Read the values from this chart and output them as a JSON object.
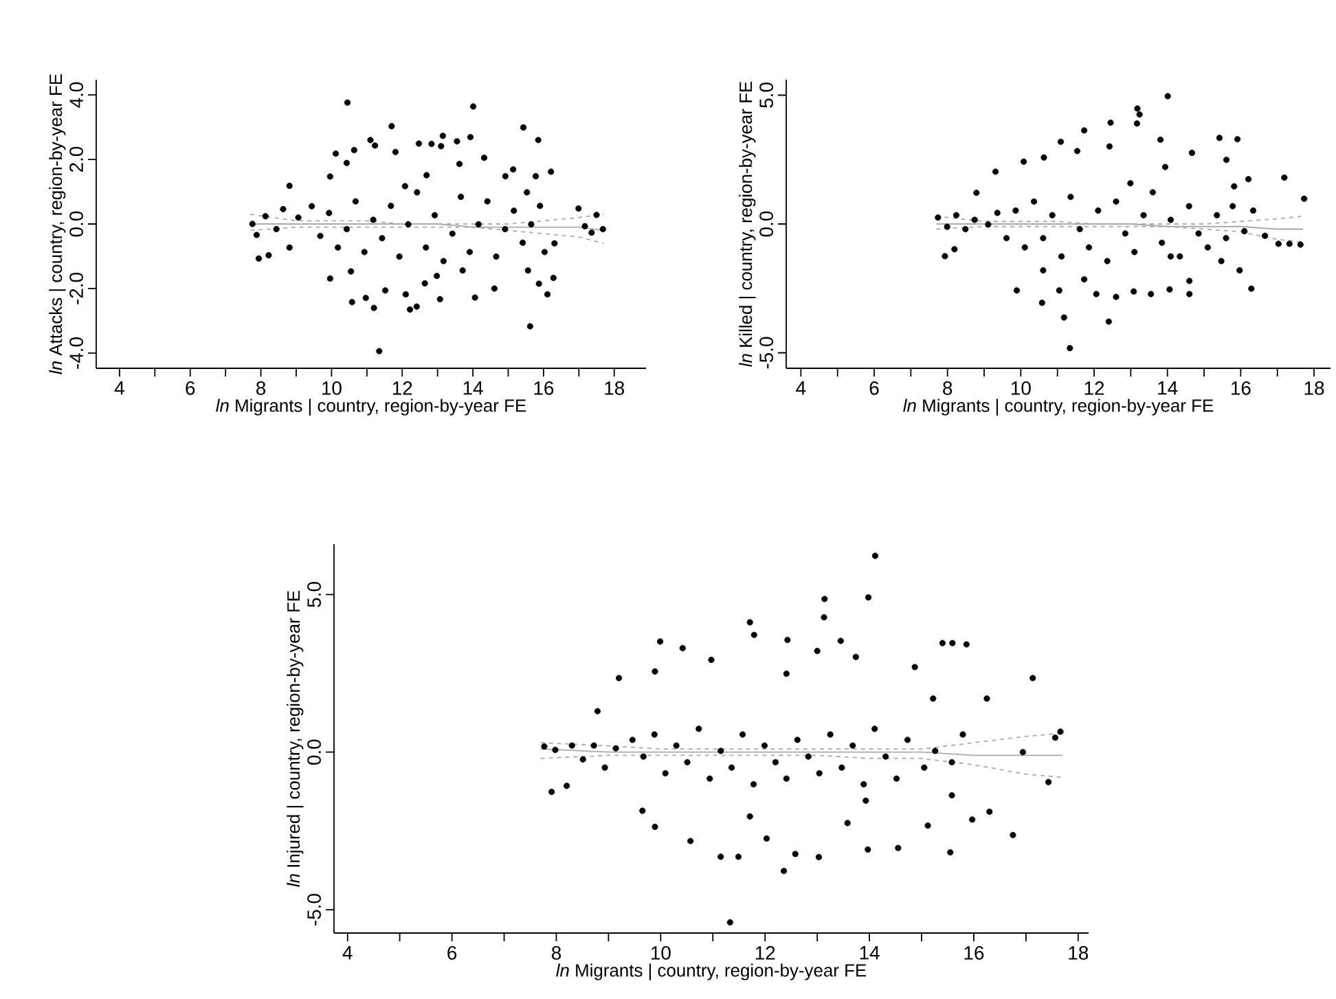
{
  "chart_data": [
    {
      "type": "scatter",
      "xlabel": "*ln* Migrants | country, region-by-year FE",
      "ylabel": "*ln* Attacks | country, region-by-year FE",
      "xlim": [
        3.34,
        18.9
      ],
      "ylim": [
        -4.47,
        4.47
      ],
      "xticks": [
        4,
        {
          "value": 5,
          "label": null
        },
        6,
        {
          "value": 7,
          "label": null
        },
        8,
        {
          "value": 9,
          "label": null
        },
        10,
        {
          "value": 11,
          "label": null
        },
        12,
        {
          "value": 13,
          "label": null
        },
        14,
        {
          "value": 15,
          "label": null
        },
        16,
        {
          "value": 17,
          "label": null
        },
        18
      ],
      "yticks": [
        {
          "value": -4,
          "label": "-4.0"
        },
        {
          "value": -2,
          "label": "-2.0"
        },
        {
          "value": 0,
          "label": "0.0"
        },
        {
          "value": 2,
          "label": "2.0"
        },
        {
          "value": 4,
          "label": "4.0"
        }
      ],
      "series": [
        {
          "color": "#000000",
          "marker": "circle",
          "x": [
            10.45,
            14.01,
            11.7,
            15.43,
            15.85,
            11.1,
            13.93,
            13.15,
            10.12,
            10.64,
            11.23,
            11.81,
            12.47,
            12.83,
            13.55,
            14.32,
            10.43,
            15.14,
            16.21,
            15.78,
            9.96,
            12.69,
            8.81,
            12.08,
            13.62,
            14.92,
            13.1,
            11.35,
            15.62,
            10.58,
            10.97,
            11.2,
            12.22,
            12.41,
            12.1,
            13.07,
            14.06,
            16.11,
            16.28,
            9.96,
            11.52,
            12.98,
            14.61,
            15.87,
            15.56,
            10.55,
            12.64,
            13.71,
            7.94,
            8.22,
            8.81,
            16.99,
            17.17,
            17.5,
            17.36,
            17.68,
            16.31,
            7.76,
            7.88,
            8.13,
            8.44,
            8.63,
            9.06,
            9.44,
            9.68,
            9.93,
            10.18,
            10.43,
            10.68,
            10.93,
            11.18,
            11.43,
            11.68,
            11.92,
            12.17,
            12.42,
            12.67,
            12.92,
            13.17,
            13.42,
            13.66,
            13.91,
            14.16,
            14.41,
            14.66,
            14.91,
            15.16,
            15.41,
            15.65,
            15.9,
            16.03,
            15.53
          ],
          "values": [
            3.76,
            3.64,
            3.03,
            2.99,
            2.6,
            2.6,
            2.69,
            2.73,
            2.18,
            2.29,
            2.43,
            2.23,
            2.49,
            2.48,
            2.56,
            2.05,
            1.89,
            1.69,
            1.62,
            1.48,
            1.47,
            1.51,
            1.18,
            1.17,
            1.86,
            1.48,
            2.41,
            -3.94,
            -3.17,
            -2.42,
            -2.29,
            -2.6,
            -2.65,
            -2.56,
            -2.18,
            -2.33,
            -2.28,
            -2.18,
            -1.67,
            -1.69,
            -2.06,
            -1.61,
            -2.0,
            -1.85,
            -1.44,
            -1.47,
            -1.84,
            -1.44,
            -1.07,
            -0.97,
            -0.73,
            0.48,
            -0.07,
            0.28,
            -0.27,
            -0.16,
            -0.6,
            0.0,
            -0.34,
            0.24,
            -0.16,
            0.46,
            0.2,
            0.55,
            -0.37,
            0.34,
            -0.73,
            -0.16,
            0.7,
            -0.87,
            0.13,
            -0.44,
            0.56,
            -1.01,
            -0.01,
            0.98,
            -0.73,
            0.27,
            -1.15,
            -0.3,
            0.84,
            -0.87,
            -0.01,
            0.7,
            -1.01,
            -0.16,
            0.41,
            -0.58,
            -0.01,
            0.56,
            -0.87,
            0.98
          ]
        },
        {
          "type": "line",
          "color": "#aaaaaa",
          "marker": "none",
          "line_style": "solid",
          "x": [
            7.7,
            9,
            10,
            11,
            12,
            13,
            14,
            15,
            16,
            17,
            17.7
          ],
          "values": [
            0,
            0,
            0,
            0,
            0,
            0,
            -0.1,
            -0.1,
            -0.1,
            -0.1,
            -0.2
          ]
        },
        {
          "type": "line",
          "color": "#aaaaaa",
          "marker": "none",
          "line_style": "dashed",
          "x": [
            7.7,
            9,
            10,
            11,
            12,
            13,
            14,
            15,
            16,
            17,
            17.7
          ],
          "values": [
            -0.2,
            -0.1,
            -0.1,
            -0.1,
            -0.1,
            -0.1,
            -0.1,
            -0.2,
            -0.3,
            -0.4,
            -0.6
          ]
        },
        {
          "type": "line",
          "color": "#aaaaaa",
          "marker": "none",
          "line_style": "dashed",
          "x": [
            7.7,
            9,
            10,
            11,
            12,
            13,
            14,
            15,
            16,
            17,
            17.7
          ],
          "values": [
            0.3,
            0.1,
            0.1,
            0.1,
            0,
            0,
            0,
            0,
            0.1,
            0.2,
            0.3
          ]
        }
      ]
    },
    {
      "type": "scatter",
      "xlabel": "*ln* Migrants | country, region-by-year FE",
      "ylabel": "*ln* Killed | country, region-by-year FE",
      "xlim": [
        3.6,
        18.45
      ],
      "ylim": [
        -5.6,
        5.6
      ],
      "xticks": [
        4,
        {
          "value": 5,
          "label": null
        },
        6,
        {
          "value": 7,
          "label": null
        },
        8,
        {
          "value": 9,
          "label": null
        },
        10,
        {
          "value": 11,
          "label": null
        },
        12,
        {
          "value": 13,
          "label": null
        },
        14,
        {
          "value": 15,
          "label": null
        },
        16,
        {
          "value": 17,
          "label": null
        },
        18
      ],
      "yticks": [
        {
          "value": -5,
          "label": "-5.0"
        },
        {
          "value": 0,
          "label": "0.0"
        },
        {
          "value": 5,
          "label": "5.0"
        }
      ],
      "series": [
        {
          "color": "#000000",
          "marker": "circle",
          "x": [
            14.01,
            13.18,
            13.24,
            13.17,
            12.45,
            11.73,
            15.42,
            15.91,
            13.81,
            11.09,
            11.54,
            12.42,
            14.67,
            15.61,
            10.08,
            10.63,
            17.19,
            16.21,
            9.31,
            13.94,
            17.73,
            15.82,
            8.79,
            12.99,
            11.34,
            12.4,
            11.18,
            10.58,
            9.89,
            11.05,
            12.06,
            12.6,
            13.08,
            13.55,
            14.06,
            14.6,
            16.29,
            15.97,
            7.93,
            8.19,
            10.61,
            11.73,
            14.6,
            14.09,
            15.47,
            16.66,
            17.03,
            17.33,
            17.63,
            16.1,
            16.34,
            7.74,
            7.99,
            8.24,
            8.49,
            8.74,
            9.11,
            9.36,
            9.61,
            9.86,
            10.11,
            10.36,
            10.61,
            10.86,
            11.11,
            11.36,
            11.61,
            11.86,
            12.11,
            12.36,
            12.6,
            12.85,
            13.1,
            13.35,
            13.6,
            13.85,
            14.09,
            14.34,
            14.59,
            14.85,
            15.1,
            15.35,
            15.6,
            15.78
          ],
          "values": [
            4.96,
            4.48,
            4.25,
            3.9,
            3.93,
            3.63,
            3.34,
            3.29,
            3.27,
            3.19,
            2.83,
            3.01,
            2.76,
            2.49,
            2.42,
            2.58,
            1.8,
            1.74,
            2.03,
            2.21,
            0.98,
            1.46,
            1.21,
            1.58,
            -4.82,
            -3.79,
            -3.63,
            -3.06,
            -2.58,
            -2.58,
            -2.72,
            -2.83,
            -2.62,
            -2.72,
            -2.54,
            -2.72,
            -2.51,
            -1.8,
            -1.25,
            -0.98,
            -1.8,
            -2.15,
            -2.21,
            -1.26,
            -1.44,
            -0.46,
            -0.77,
            -0.77,
            -0.8,
            -0.28,
            0.52,
            0.25,
            -0.11,
            0.34,
            -0.2,
            0.16,
            -0.02,
            0.43,
            -0.55,
            0.52,
            -0.91,
            0.87,
            -0.55,
            0.34,
            -1.26,
            1.05,
            -0.2,
            -0.91,
            0.52,
            -1.44,
            0.87,
            -0.37,
            -1.09,
            0.34,
            1.23,
            -0.73,
            0.16,
            -1.26,
            0.69,
            -0.37,
            -0.91,
            0.34,
            -0.55,
            0.69
          ]
        },
        {
          "type": "line",
          "color": "#aaaaaa",
          "marker": "none",
          "line_style": "solid",
          "x": [
            7.7,
            9,
            10,
            11,
            12,
            13,
            14,
            15,
            16,
            17,
            17.7
          ],
          "values": [
            0,
            0,
            0,
            0,
            0,
            0,
            -0.1,
            -0.1,
            -0.1,
            -0.2,
            -0.2
          ]
        },
        {
          "type": "line",
          "color": "#aaaaaa",
          "marker": "none",
          "line_style": "dashed",
          "x": [
            7.7,
            9,
            10,
            11,
            12,
            13,
            14,
            15,
            16,
            17,
            17.7
          ],
          "values": [
            -0.2,
            -0.1,
            -0.1,
            -0.1,
            -0.1,
            -0.1,
            -0.1,
            -0.2,
            -0.3,
            -0.6,
            -0.7
          ]
        },
        {
          "type": "line",
          "color": "#aaaaaa",
          "marker": "none",
          "line_style": "dashed",
          "x": [
            7.7,
            9,
            10,
            11,
            12,
            13,
            14,
            15,
            16,
            17,
            17.7
          ],
          "values": [
            0.3,
            0.1,
            0.1,
            0.1,
            0,
            0,
            0,
            0,
            0.1,
            0.2,
            0.3
          ]
        }
      ]
    },
    {
      "type": "scatter",
      "xlabel": "*ln* Migrants | country, region-by-year FE",
      "ylabel": "*ln* Injured | country, region-by-year FE",
      "xlim": [
        3.74,
        18.2
      ],
      "ylim": [
        -5.74,
        6.6
      ],
      "xticks": [
        4,
        {
          "value": 5,
          "label": null
        },
        6,
        {
          "value": 7,
          "label": null
        },
        8,
        {
          "value": 9,
          "label": null
        },
        10,
        {
          "value": 11,
          "label": null
        },
        12,
        {
          "value": 13,
          "label": null
        },
        14,
        {
          "value": 15,
          "label": null
        },
        16,
        {
          "value": 17,
          "label": null
        },
        18
      ],
      "yticks": [
        {
          "value": -5,
          "label": "-5.0"
        },
        {
          "value": 0,
          "label": "0.0"
        },
        {
          "value": 5,
          "label": "5.0"
        }
      ],
      "series": [
        {
          "color": "#000000",
          "marker": "circle",
          "x": [
            14.11,
            13.98,
            13.14,
            13.13,
            11.71,
            11.79,
            9.99,
            12.43,
            13.45,
            15.4,
            15.59,
            15.86,
            10.42,
            13.0,
            17.13,
            9.2,
            9.89,
            13.74,
            10.97,
            12.41,
            14.87,
            16.25,
            15.22,
            8.79,
            17.66,
            17.56,
            16.94,
            11.33,
            12.36,
            13.03,
            13.97,
            15.55,
            16.75,
            11.15,
            11.49,
            12.58,
            10.57,
            12.03,
            9.89,
            15.12,
            15.97,
            16.3,
            17.43,
            7.91,
            8.2,
            9.65,
            13.58,
            14.55,
            15.58,
            13.93,
            11.71,
            7.77,
            7.98,
            8.3,
            8.51,
            8.72,
            8.93,
            9.14,
            9.46,
            9.67,
            9.88,
            10.09,
            10.3,
            10.51,
            10.73,
            10.94,
            11.15,
            11.36,
            11.57,
            11.78,
            11.99,
            12.2,
            12.41,
            12.62,
            12.83,
            13.04,
            13.25,
            13.47,
            13.68,
            13.89,
            14.1,
            14.31,
            14.52,
            14.73,
            15.05,
            15.26,
            15.58,
            15.79
          ],
          "values": [
            6.23,
            4.91,
            4.86,
            4.28,
            4.12,
            3.72,
            3.51,
            3.56,
            3.53,
            3.46,
            3.46,
            3.42,
            3.3,
            3.21,
            2.35,
            2.35,
            2.56,
            3.02,
            2.93,
            2.49,
            2.7,
            1.7,
            1.7,
            1.3,
            0.65,
            0.46,
            0.0,
            -5.4,
            -3.77,
            -3.33,
            -3.09,
            -3.18,
            -2.63,
            -3.32,
            -3.32,
            -3.23,
            -2.82,
            -2.74,
            -2.37,
            -2.33,
            -2.14,
            -1.89,
            -0.95,
            -1.26,
            -1.07,
            -1.86,
            -2.25,
            -3.04,
            -1.37,
            -1.54,
            -2.04,
            0.18,
            0.07,
            0.21,
            -0.23,
            0.21,
            -0.49,
            0.12,
            0.39,
            -0.14,
            0.56,
            -0.67,
            0.21,
            -0.32,
            0.74,
            -0.84,
            0.04,
            -0.49,
            0.56,
            -1.02,
            0.21,
            -0.32,
            -0.84,
            0.39,
            -0.14,
            -0.67,
            0.56,
            -0.49,
            0.21,
            -1.02,
            0.74,
            -0.14,
            -0.84,
            0.39,
            -0.49,
            0.04,
            -0.32,
            0.56
          ]
        },
        {
          "type": "line",
          "color": "#aaaaaa",
          "marker": "none",
          "line_style": "solid",
          "x": [
            7.7,
            9,
            10,
            11,
            12,
            13,
            14,
            15,
            16,
            17,
            17.7
          ],
          "values": [
            0.1,
            0,
            0,
            0,
            0,
            0,
            0,
            0,
            -0.1,
            -0.1,
            -0.1
          ]
        },
        {
          "type": "line",
          "color": "#aaaaaa",
          "marker": "none",
          "line_style": "dashed",
          "x": [
            7.7,
            9,
            10,
            11,
            12,
            13,
            14,
            15,
            16,
            17,
            17.7
          ],
          "values": [
            -0.2,
            -0.1,
            -0.1,
            -0.1,
            -0.1,
            -0.1,
            -0.2,
            -0.2,
            -0.4,
            -0.7,
            -0.8
          ]
        },
        {
          "type": "line",
          "color": "#aaaaaa",
          "marker": "none",
          "line_style": "dashed",
          "x": [
            7.7,
            9,
            10,
            11,
            12,
            13,
            14,
            15,
            16,
            17,
            17.7
          ],
          "values": [
            0.3,
            0.2,
            0.1,
            0.1,
            0.1,
            0.1,
            0.1,
            0.1,
            0.3,
            0.5,
            0.6
          ]
        }
      ]
    }
  ]
}
